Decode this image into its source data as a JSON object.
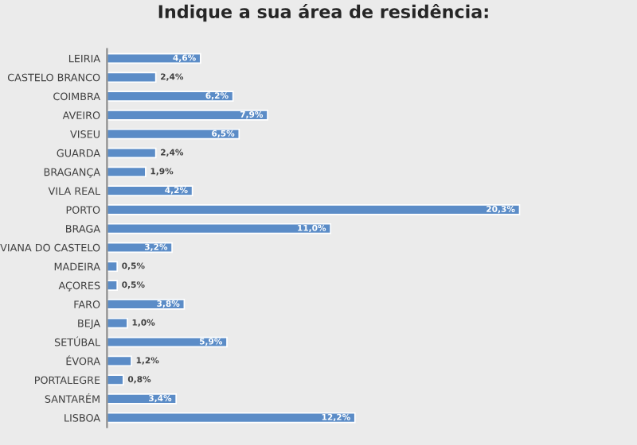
{
  "chart_data": {
    "type": "bar",
    "orientation": "horizontal",
    "title": "Indique a sua área de residência:",
    "categories": [
      "LEIRIA",
      "CASTELO BRANCO",
      "COIMBRA",
      "AVEIRO",
      "VISEU",
      "GUARDA",
      "BRAGANÇA",
      "VILA REAL",
      "PORTO",
      "BRAGA",
      "VIANA DO CASTELO",
      "MADEIRA",
      "AÇORES",
      "FARO",
      "BEJA",
      "SETÚBAL",
      "ÉVORA",
      "PORTALEGRE",
      "SANTARÉM",
      "LISBOA"
    ],
    "values": [
      4.6,
      2.4,
      6.2,
      7.9,
      6.5,
      2.4,
      1.9,
      4.2,
      20.3,
      11.0,
      3.2,
      0.5,
      0.5,
      3.8,
      1.0,
      5.9,
      1.2,
      0.8,
      3.4,
      12.2
    ],
    "value_labels": [
      "4,6%",
      "2,4%",
      "6,2%",
      "7,9%",
      "6,5%",
      "2,4%",
      "1,9%",
      "4,2%",
      "20,3%",
      "11,0%",
      "3,2%",
      "0,5%",
      "0,5%",
      "3,8%",
      "1,0%",
      "5,9%",
      "1,2%",
      "0,8%",
      "3,4%",
      "12,2%"
    ],
    "color": "#5b8cc7",
    "grid": false,
    "legend": false,
    "tick_labels": "y"
  }
}
